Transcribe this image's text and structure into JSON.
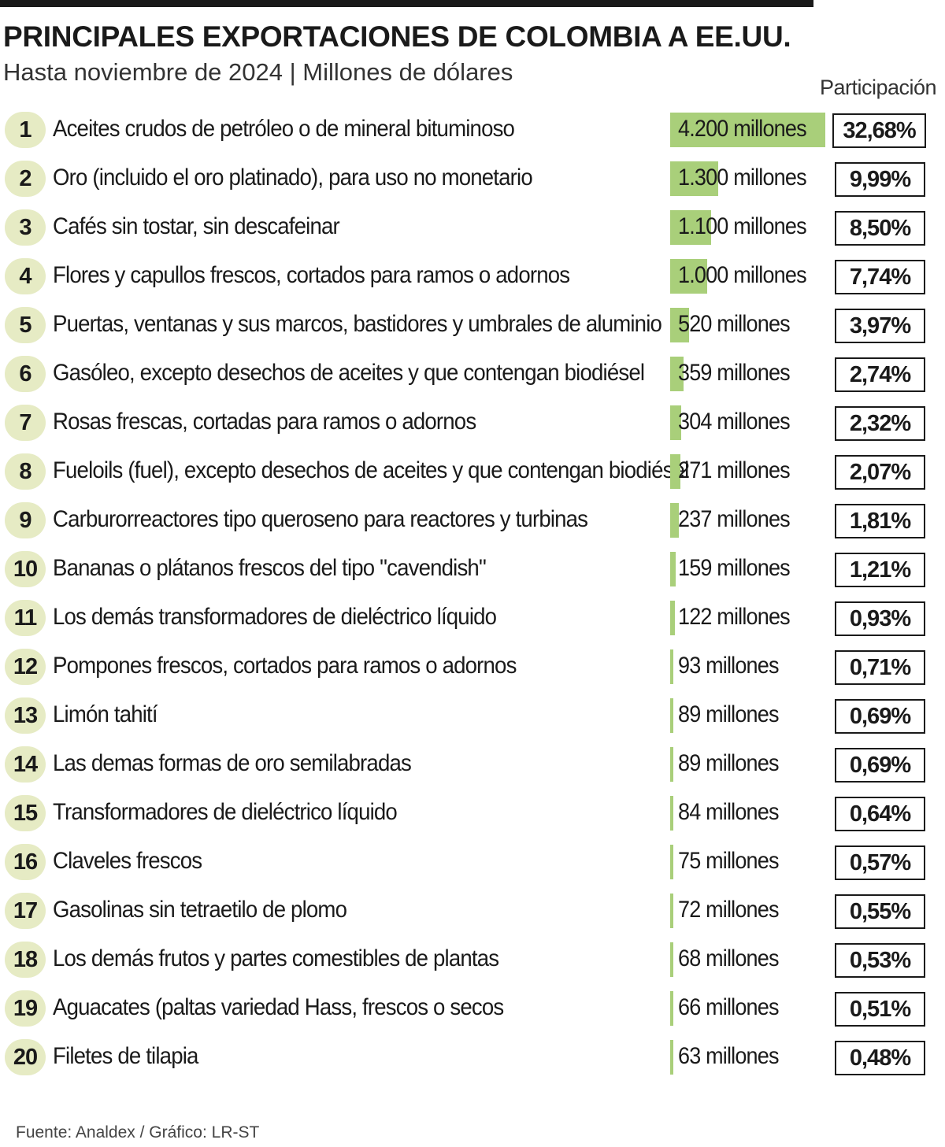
{
  "header": {
    "title": "PRINCIPALES EXPORTACIONES DE COLOMBIA A EE.UU.",
    "subtitle": "Hasta noviembre de 2024 | Millones de dólares",
    "share_header": "Participación"
  },
  "footer": {
    "source": "Fuente: Analdex / Gráfico: LR-ST"
  },
  "colors": {
    "bar": "#a9cf7a",
    "rank_badge": "#e6ebc4",
    "text": "#1a1a1a"
  },
  "chart_data": {
    "type": "bar",
    "orientation": "horizontal",
    "title": "PRINCIPALES EXPORTACIONES DE COLOMBIA A EE.UU.",
    "subtitle": "Hasta noviembre de 2024 | Millones de dólares",
    "unit": "Millones de dólares",
    "items": [
      {
        "rank": "1",
        "product": "Aceites crudos de petróleo o de mineral bituminoso",
        "value": 4200,
        "value_label": "4.200 millones",
        "share": "32,68%"
      },
      {
        "rank": "2",
        "product": "Oro (incluido el oro platinado), para uso no monetario",
        "value": 1300,
        "value_label": "1.300 millones",
        "share": "9,99%"
      },
      {
        "rank": "3",
        "product": "Cafés sin tostar, sin descafeinar",
        "value": 1100,
        "value_label": "1.100 millones",
        "share": "8,50%"
      },
      {
        "rank": "4",
        "product": "Flores y capullos frescos, cortados para ramos o adornos",
        "value": 1000,
        "value_label": "1.000 millones",
        "share": "7,74%"
      },
      {
        "rank": "5",
        "product": "Puertas, ventanas y sus marcos, bastidores y umbrales de aluminio",
        "value": 520,
        "value_label": "520 millones",
        "share": "3,97%"
      },
      {
        "rank": "6",
        "product": "Gasóleo, excepto desechos de aceites y que contengan biodiésel",
        "value": 359,
        "value_label": "359 millones",
        "share": "2,74%"
      },
      {
        "rank": "7",
        "product": "Rosas frescas, cortadas para ramos o adornos",
        "value": 304,
        "value_label": "304 millones",
        "share": "2,32%"
      },
      {
        "rank": "8",
        "product": "Fueloils (fuel), excepto desechos de aceites y que contengan biodiésel",
        "value": 271,
        "value_label": "271 millones",
        "share": "2,07%"
      },
      {
        "rank": "9",
        "product": "Carburorreactores tipo queroseno para reactores y turbinas",
        "value": 237,
        "value_label": "237 millones",
        "share": "1,81%"
      },
      {
        "rank": "10",
        "product": "Bananas o plátanos frescos del tipo \"cavendish\"",
        "value": 159,
        "value_label": "159 millones",
        "share": "1,21%"
      },
      {
        "rank": "11",
        "product": "Los demás transformadores de dieléctrico líquido",
        "value": 122,
        "value_label": "122 millones",
        "share": "0,93%"
      },
      {
        "rank": "12",
        "product": "Pompones frescos, cortados para ramos o adornos",
        "value": 93,
        "value_label": "93 millones",
        "share": "0,71%"
      },
      {
        "rank": "13",
        "product": "Limón tahití",
        "value": 89,
        "value_label": "89 millones",
        "share": "0,69%"
      },
      {
        "rank": "14",
        "product": "Las demas formas de oro semilabradas",
        "value": 89,
        "value_label": "89 millones",
        "share": "0,69%"
      },
      {
        "rank": "15",
        "product": "Transformadores de dieléctrico líquido",
        "value": 84,
        "value_label": "84 millones",
        "share": "0,64%"
      },
      {
        "rank": "16",
        "product": "Claveles frescos",
        "value": 75,
        "value_label": "75 millones",
        "share": "0,57%"
      },
      {
        "rank": "17",
        "product": "Gasolinas sin tetraetilo de plomo",
        "value": 72,
        "value_label": "72 millones",
        "share": "0,55%"
      },
      {
        "rank": "18",
        "product": "Los demás frutos y partes comestibles de plantas",
        "value": 68,
        "value_label": "68 millones",
        "share": "0,53%"
      },
      {
        "rank": "19",
        "product": "Aguacates (paltas variedad Hass, frescos o secos",
        "value": 66,
        "value_label": "66 millones",
        "share": "0,51%"
      },
      {
        "rank": "20",
        "product": "Filetes de tilapia",
        "value": 63,
        "value_label": "63 millones",
        "share": "0,48%"
      }
    ]
  }
}
